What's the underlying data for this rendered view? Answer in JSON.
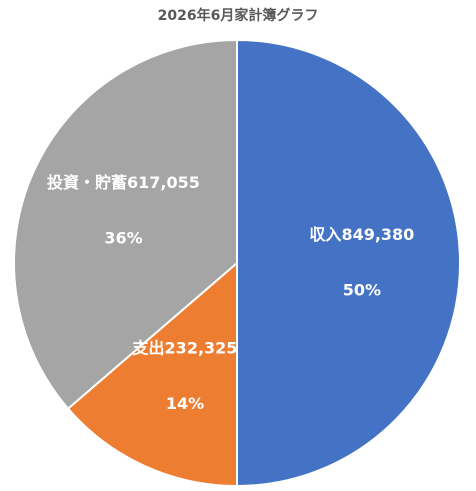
{
  "chart_data": {
    "type": "pie",
    "title": "2026年6月家計簿グラフ",
    "categories": [
      "収入",
      "支出",
      "投資・貯蓄"
    ],
    "values": [
      849380,
      232325,
      617055
    ],
    "value_labels": [
      "849,380",
      "232,325",
      "617,055"
    ],
    "percent_labels": [
      "50%",
      "14%",
      "36%"
    ],
    "colors": [
      "#4472c4",
      "#ed7d31",
      "#a5a5a5"
    ]
  }
}
